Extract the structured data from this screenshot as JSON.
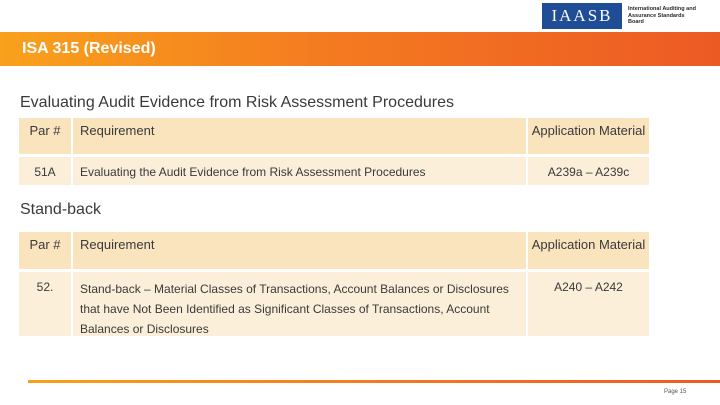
{
  "logo": {
    "abbr": "IAASB",
    "text": "International Auditing and Assurance Standards Board"
  },
  "banner": {
    "title": "ISA 315 (Revised)"
  },
  "section1": {
    "title": "Evaluating Audit Evidence from Risk Assessment Procedures",
    "header": {
      "par": "Par #",
      "requirement": "Requirement",
      "app": "Application Material"
    },
    "row": {
      "par": "51A",
      "requirement": "Evaluating the Audit Evidence from Risk Assessment Procedures",
      "app": "A239a – A239c"
    }
  },
  "section2": {
    "title": "Stand-back",
    "header": {
      "par": "Par #",
      "requirement": "Requirement",
      "app": "Application Material"
    },
    "row": {
      "par": "52.",
      "requirement": "Stand-back – Material Classes of Transactions, Account Balances or Disclosures that have Not Been Identified as Significant Classes of Transactions, Account Balances or Disclosures",
      "app": "A240 – A242"
    }
  },
  "footer": {
    "page": "Page 15"
  },
  "colors": {
    "banner_start": "#f8a11c",
    "banner_end": "#ec5a24",
    "logo_blue": "#1f4e96",
    "header_fill": "#f9e4be",
    "row_fill": "#fbefd9"
  }
}
